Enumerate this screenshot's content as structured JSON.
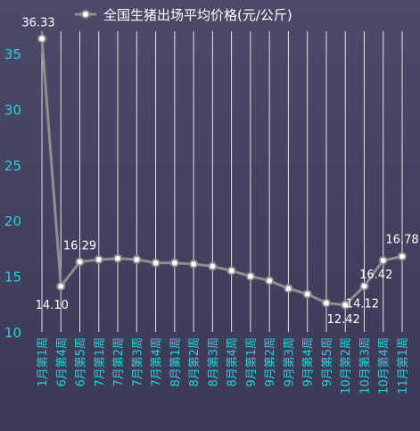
{
  "legend": {
    "label": "全国生猪出场平均价格(元/公斤)"
  },
  "colors": {
    "background_top": "#4b4b69",
    "background_bottom": "#3a3a57",
    "line": "#8f8f8f",
    "marker_fill": "#ffffff",
    "marker_stroke": "#8f8f8f",
    "axis_label": "#2ad0d8",
    "grid": "#ffffff",
    "data_label": "#ffffff"
  },
  "chart_data": {
    "type": "line",
    "title": "",
    "xlabel": "",
    "ylabel": "",
    "ylim": [
      10,
      37
    ],
    "yticks": [
      10,
      15,
      20,
      25,
      30,
      35
    ],
    "grid": "vertical",
    "legend_position": "top",
    "categories": [
      "1月第1周",
      "6月第4周",
      "6月第5周",
      "7月第1周",
      "7月第2周",
      "7月第3周",
      "7月第4周",
      "8月第1周",
      "8月第2周",
      "8月第3周",
      "8月第4周",
      "9月第1周",
      "9月第2周",
      "9月第3周",
      "9月第4周",
      "9月第5周",
      "10月第2周",
      "10月第3周",
      "10月第4周",
      "11月第1周"
    ],
    "series": [
      {
        "name": "全国生猪出场平均价格(元/公斤)",
        "values": [
          36.33,
          14.1,
          16.29,
          16.5,
          16.6,
          16.5,
          16.2,
          16.2,
          16.1,
          15.9,
          15.5,
          15.0,
          14.6,
          13.9,
          13.4,
          12.6,
          12.42,
          14.12,
          16.42,
          16.78
        ]
      }
    ],
    "data_labels": [
      {
        "index": 0,
        "text": "36.33"
      },
      {
        "index": 1,
        "text": "14.10"
      },
      {
        "index": 2,
        "text": "16.29"
      },
      {
        "index": 16,
        "text": "12.42"
      },
      {
        "index": 17,
        "text": "14.12"
      },
      {
        "index": 18,
        "text": "16.42"
      },
      {
        "index": 19,
        "text": "16.78"
      }
    ]
  }
}
